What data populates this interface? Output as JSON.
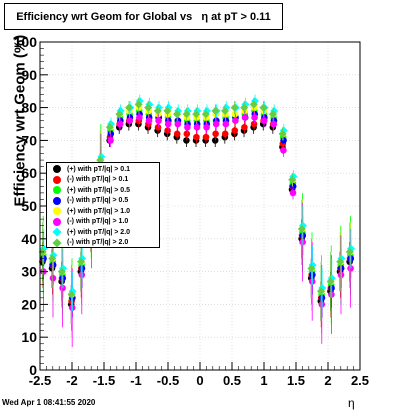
{
  "title": "Efficiency wrt Geom for Global vs   η at pT > 0.11",
  "timestamp": "Wed Apr  1 08:41:55 2020",
  "chart_data": {
    "type": "scatter",
    "xlabel": "η",
    "ylabel": "Efficiency wrt Geom (%)",
    "xlim": [
      -2.5,
      2.5
    ],
    "ylim": [
      0,
      100
    ],
    "xticks": [
      "-2.5",
      "-2",
      "-1.5",
      "-1",
      "-0.5",
      "0",
      "0.5",
      "1",
      "1.5",
      "2",
      "2.5"
    ],
    "yticks": [
      "0",
      "10",
      "20",
      "30",
      "40",
      "50",
      "60",
      "70",
      "80",
      "90",
      "100"
    ],
    "legend_position": "left",
    "series": [
      {
        "name": "(+) with pT/|q| > 0.1",
        "color": "#000000",
        "marker": "circle",
        "x": [
          -2.45,
          -2.3,
          -2.15,
          -2.0,
          -1.85,
          -1.7,
          -1.55,
          -1.4,
          -1.25,
          -1.1,
          -0.95,
          -0.8,
          -0.65,
          -0.5,
          -0.35,
          -0.2,
          -0.05,
          0.1,
          0.25,
          0.4,
          0.55,
          0.7,
          0.85,
          1.0,
          1.15,
          1.3,
          1.45,
          1.6,
          1.75,
          1.9,
          2.05,
          2.2,
          2.35
        ],
        "y": [
          33,
          31,
          27,
          20,
          30,
          44,
          60,
          70,
          74,
          75,
          75,
          74,
          73,
          72,
          71,
          70,
          70,
          70,
          70,
          71,
          72,
          73,
          74,
          75,
          74,
          68,
          55,
          40,
          28,
          21,
          24,
          30,
          33
        ]
      },
      {
        "name": "(-) with pT/|q| > 0.1",
        "color": "#ff0000",
        "marker": "circle",
        "x": [
          -2.45,
          -2.3,
          -2.15,
          -2.0,
          -1.85,
          -1.7,
          -1.55,
          -1.4,
          -1.25,
          -1.1,
          -0.95,
          -0.8,
          -0.65,
          -0.5,
          -0.35,
          -0.2,
          -0.05,
          0.1,
          0.25,
          0.4,
          0.55,
          0.7,
          0.85,
          1.0,
          1.15,
          1.3,
          1.45,
          1.6,
          1.75,
          1.9,
          2.05,
          2.2,
          2.35
        ],
        "y": [
          34,
          32,
          28,
          21,
          31,
          45,
          61,
          71,
          75,
          76,
          76,
          75,
          74,
          73,
          72,
          72,
          71,
          71,
          72,
          72,
          73,
          74,
          75,
          76,
          75,
          69,
          56,
          41,
          29,
          22,
          25,
          31,
          34
        ]
      },
      {
        "name": "(+) with pT/|q| > 0.5",
        "color": "#00ff00",
        "marker": "circle",
        "x": [
          -2.45,
          -2.3,
          -2.15,
          -2.0,
          -1.85,
          -1.7,
          -1.55,
          -1.4,
          -1.25,
          -1.1,
          -0.95,
          -0.8,
          -0.65,
          -0.5,
          -0.35,
          -0.2,
          -0.05,
          0.1,
          0.25,
          0.4,
          0.55,
          0.7,
          0.85,
          1.0,
          1.15,
          1.3,
          1.45,
          1.6,
          1.75,
          1.9,
          2.05,
          2.2,
          2.35
        ],
        "y": [
          35,
          33,
          29,
          22,
          32,
          46,
          63,
          73,
          77,
          78,
          79,
          78,
          77,
          77,
          76,
          76,
          76,
          76,
          76,
          77,
          77,
          78,
          79,
          78,
          77,
          71,
          57,
          42,
          30,
          23,
          26,
          32,
          35
        ]
      },
      {
        "name": "(-) with pT/|q| > 0.5",
        "color": "#0000ff",
        "marker": "circle",
        "x": [
          -2.45,
          -2.3,
          -2.15,
          -2.0,
          -1.85,
          -1.7,
          -1.55,
          -1.4,
          -1.25,
          -1.1,
          -0.95,
          -0.8,
          -0.65,
          -0.5,
          -0.35,
          -0.2,
          -0.05,
          0.1,
          0.25,
          0.4,
          0.55,
          0.7,
          0.85,
          1.0,
          1.15,
          1.3,
          1.45,
          1.6,
          1.75,
          1.9,
          2.05,
          2.2,
          2.35
        ],
        "y": [
          34,
          32,
          28,
          22,
          31,
          45,
          62,
          72,
          76,
          77,
          78,
          77,
          77,
          76,
          76,
          75,
          75,
          75,
          76,
          76,
          77,
          77,
          78,
          77,
          76,
          70,
          56,
          41,
          29,
          22,
          25,
          31,
          34
        ]
      },
      {
        "name": "(+) with pT/|q| > 1.0",
        "color": "#ffff00",
        "marker": "circle",
        "x": [
          -2.45,
          -2.3,
          -2.15,
          -2.0,
          -1.85,
          -1.7,
          -1.55,
          -1.4,
          -1.25,
          -1.1,
          -0.95,
          -0.8,
          -0.65,
          -0.5,
          -0.35,
          -0.2,
          -0.05,
          0.1,
          0.25,
          0.4,
          0.55,
          0.7,
          0.85,
          1.0,
          1.15,
          1.3,
          1.45,
          1.6,
          1.75,
          1.9,
          2.05,
          2.2,
          2.35
        ],
        "y": [
          36,
          34,
          30,
          23,
          33,
          47,
          64,
          74,
          78,
          79,
          80,
          79,
          78,
          78,
          78,
          77,
          77,
          77,
          78,
          78,
          78,
          79,
          80,
          79,
          78,
          72,
          58,
          43,
          31,
          24,
          27,
          33,
          36
        ]
      },
      {
        "name": "(-) with pT/|q| > 1.0",
        "color": "#ff00ff",
        "marker": "circle",
        "x": [
          -2.45,
          -2.3,
          -2.15,
          -2.0,
          -1.85,
          -1.7,
          -1.55,
          -1.4,
          -1.25,
          -1.1,
          -0.95,
          -0.8,
          -0.65,
          -0.5,
          -0.35,
          -0.2,
          -0.05,
          0.1,
          0.25,
          0.4,
          0.55,
          0.7,
          0.85,
          1.0,
          1.15,
          1.3,
          1.45,
          1.6,
          1.75,
          1.9,
          2.05,
          2.2,
          2.35
        ],
        "y": [
          30,
          28,
          25,
          19,
          29,
          43,
          60,
          70,
          75,
          76,
          77,
          76,
          76,
          75,
          75,
          74,
          74,
          74,
          75,
          75,
          76,
          77,
          77,
          76,
          75,
          67,
          54,
          39,
          27,
          20,
          23,
          29,
          31
        ]
      },
      {
        "name": "(+) with pT/|q| > 2.0",
        "color": "#00ffff",
        "marker": "diamond",
        "x": [
          -2.45,
          -2.3,
          -2.15,
          -2.0,
          -1.85,
          -1.7,
          -1.55,
          -1.4,
          -1.25,
          -1.1,
          -0.95,
          -0.8,
          -0.65,
          -0.5,
          -0.35,
          -0.2,
          -0.05,
          0.1,
          0.25,
          0.4,
          0.55,
          0.7,
          0.85,
          1.0,
          1.15,
          1.3,
          1.45,
          1.6,
          1.75,
          1.9,
          2.05,
          2.2,
          2.35
        ],
        "y": [
          37,
          35,
          31,
          24,
          34,
          48,
          65,
          75,
          79,
          80,
          82,
          81,
          80,
          80,
          79,
          79,
          79,
          79,
          79,
          80,
          80,
          81,
          82,
          80,
          79,
          73,
          59,
          44,
          32,
          25,
          28,
          34,
          37
        ]
      },
      {
        "name": "(-) with pT/|q| > 2.0",
        "color": "#66cc44",
        "marker": "diamond",
        "x": [
          -2.45,
          -2.3,
          -2.15,
          -2.0,
          -1.85,
          -1.7,
          -1.55,
          -1.4,
          -1.25,
          -1.1,
          -0.95,
          -0.8,
          -0.65,
          -0.5,
          -0.35,
          -0.2,
          -0.05,
          0.1,
          0.25,
          0.4,
          0.55,
          0.7,
          0.85,
          1.0,
          1.15,
          1.3,
          1.45,
          1.6,
          1.75,
          1.9,
          2.05,
          2.2,
          2.35
        ],
        "y": [
          36,
          34,
          30,
          23,
          33,
          47,
          64,
          74,
          78,
          80,
          81,
          80,
          79,
          79,
          78,
          78,
          78,
          78,
          79,
          79,
          80,
          80,
          81,
          80,
          78,
          72,
          58,
          43,
          31,
          24,
          27,
          33,
          36
        ]
      }
    ]
  }
}
